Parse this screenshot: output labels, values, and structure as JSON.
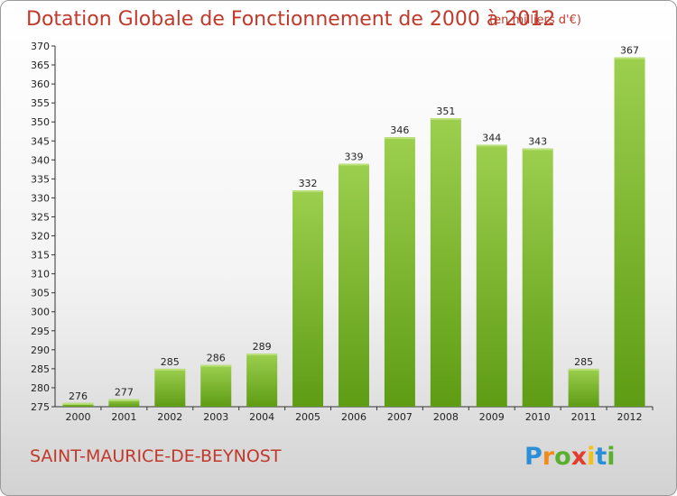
{
  "title": "Dotation Globale de Fonctionnement de 2000 à 2012",
  "unit_note": "(en milliers d'€)",
  "city": "SAINT-MAURICE-DE-BEYNOST",
  "logo": {
    "text": "Proxiti",
    "letters": [
      "P",
      "r",
      "o",
      "x",
      "i",
      "t",
      "i"
    ],
    "letter_colors": [
      "#2a8fd6",
      "#f08c1c",
      "#5ab02d",
      "#e23c2c",
      "#f2c21a",
      "#2a8fd6",
      "#5ab02d"
    ]
  },
  "colors": {
    "title": "#c0392b",
    "bar_light": "#9ccf4e",
    "bar_dark": "#5e9c14"
  },
  "chart_data": {
    "type": "bar",
    "categories": [
      "2000",
      "2001",
      "2002",
      "2003",
      "2004",
      "2005",
      "2006",
      "2007",
      "2008",
      "2009",
      "2010",
      "2011",
      "2012"
    ],
    "values": [
      276,
      277,
      285,
      286,
      289,
      332,
      339,
      346,
      351,
      344,
      343,
      285,
      367
    ],
    "ylim": [
      275,
      370
    ],
    "yticks": [
      275,
      280,
      285,
      290,
      295,
      300,
      305,
      310,
      315,
      320,
      325,
      330,
      335,
      340,
      345,
      350,
      355,
      360,
      365,
      370
    ],
    "grid": false,
    "legend": "none"
  }
}
